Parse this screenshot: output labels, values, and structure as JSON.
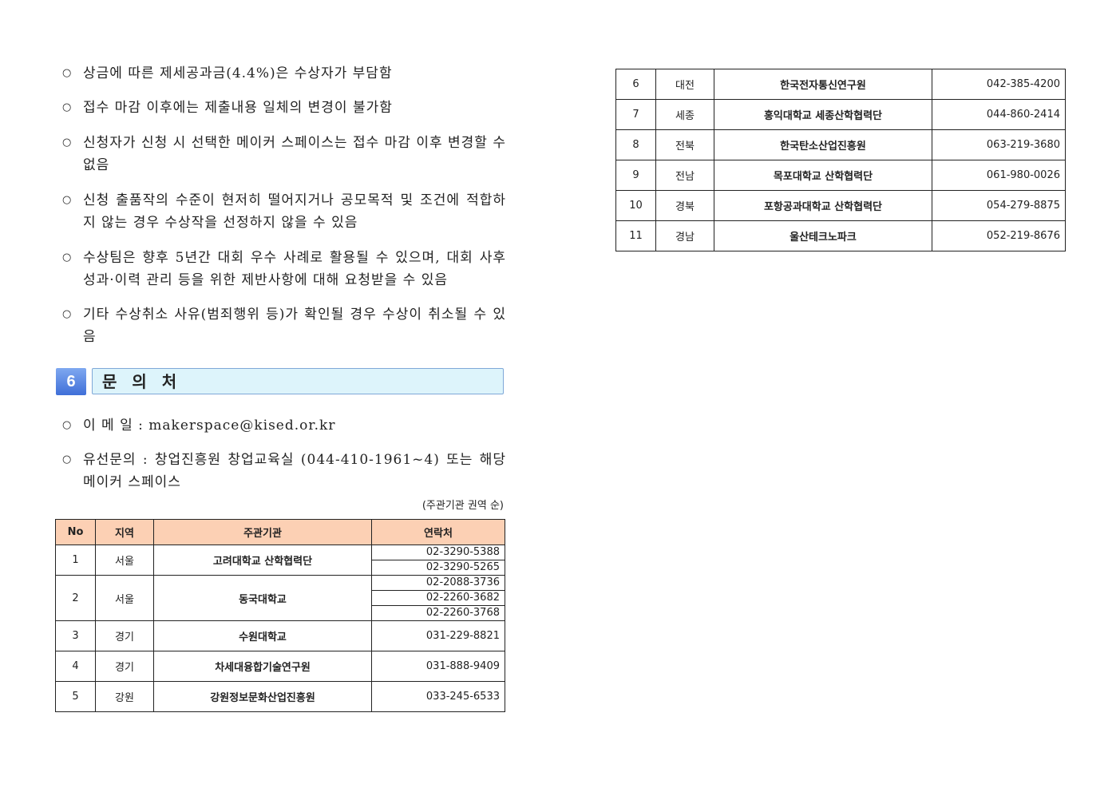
{
  "bullets": [
    "상금에 따른 제세공과금(4.4%)은 수상자가 부담함",
    "접수 마감 이후에는 제출내용 일체의 변경이 불가함",
    "신청자가 신청 시 선택한 메이커 스페이스는 접수 마감 이후 변경할 수 없음",
    "신청 출품작의 수준이 현저히 떨어지거나 공모목적 및 조건에 적합하지 않는 경우 수상작을 선정하지 않을 수 있음",
    "수상팀은 향후 5년간 대회 우수 사례로 활용될 수 있으며, 대회 사후 성과·이력 관리 등을 위한 제반사항에 대해 요청받을 수 있음",
    "기타 수상취소 사유(범죄행위 등)가 확인될 경우 수상이 취소될 수 있음"
  ],
  "section": {
    "number": "6",
    "title": "문 의 처"
  },
  "contact": [
    "이 메 일 : makerspace@kised.or.kr",
    "유선문의 : 창업진흥원 창업교육실 (044-410-1961~4) 또는 해당 메이커 스페이스"
  ],
  "table_note": "(주관기관 권역 순)",
  "table_headers": [
    "No",
    "지역",
    "주관기관",
    "연락처"
  ],
  "rows_left": [
    {
      "no": "1",
      "region": "서울",
      "org": "고려대학교 산학협력단",
      "phones": [
        "02-3290-5388",
        "02-3290-5265"
      ]
    },
    {
      "no": "2",
      "region": "서울",
      "org": "동국대학교",
      "phones": [
        "02-2088-3736",
        "02-2260-3682",
        "02-2260-3768"
      ]
    },
    {
      "no": "3",
      "region": "경기",
      "org": "수원대학교",
      "phones": [
        "031-229-8821"
      ]
    },
    {
      "no": "4",
      "region": "경기",
      "org": "차세대융합기술연구원",
      "phones": [
        "031-888-9409"
      ]
    },
    {
      "no": "5",
      "region": "강원",
      "org": "강원정보문화산업진흥원",
      "phones": [
        "033-245-6533"
      ]
    }
  ],
  "rows_right": [
    {
      "no": "6",
      "region": "대전",
      "org": "한국전자통신연구원",
      "phones": [
        "042-385-4200"
      ]
    },
    {
      "no": "7",
      "region": "세종",
      "org": "홍익대학교 세종산학협력단",
      "phones": [
        "044-860-2414"
      ]
    },
    {
      "no": "8",
      "region": "전북",
      "org": "한국탄소산업진흥원",
      "phones": [
        "063-219-3680"
      ]
    },
    {
      "no": "9",
      "region": "전남",
      "org": "목포대학교 산학협력단",
      "phones": [
        "061-980-0026"
      ]
    },
    {
      "no": "10",
      "region": "경북",
      "org": "포항공과대학교 산학협력단",
      "phones": [
        "054-279-8875"
      ]
    },
    {
      "no": "11",
      "region": "경남",
      "org": "울산테크노파크",
      "phones": [
        "052-219-8676"
      ]
    }
  ]
}
